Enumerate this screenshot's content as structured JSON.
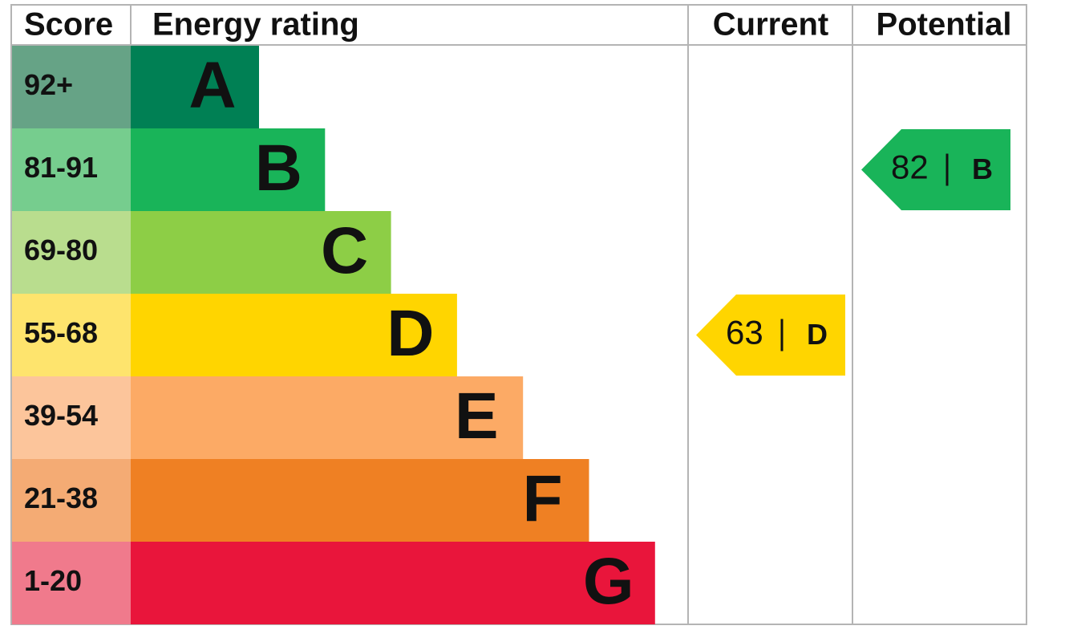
{
  "header": {
    "score": "Score",
    "rating": "Energy rating",
    "current": "Current",
    "potential": "Potential"
  },
  "bands": [
    {
      "score": "92+",
      "letter": "A",
      "color": "#008054",
      "score_color": "#66a386"
    },
    {
      "score": "81-91",
      "letter": "B",
      "color": "#19b459",
      "score_color": "#76cd8e"
    },
    {
      "score": "69-80",
      "letter": "C",
      "color": "#8dce46",
      "score_color": "#b9dd8e"
    },
    {
      "score": "55-68",
      "letter": "D",
      "color": "#ffd500",
      "score_color": "#fee46d"
    },
    {
      "score": "39-54",
      "letter": "E",
      "color": "#fcaa65",
      "score_color": "#fcc59b"
    },
    {
      "score": "21-38",
      "letter": "F",
      "color": "#ef8023",
      "score_color": "#f4ab74"
    },
    {
      "score": "1-20",
      "letter": "G",
      "color": "#e9153b",
      "score_color": "#f07a8c"
    }
  ],
  "current": {
    "score": "63",
    "letter": "D"
  },
  "potential": {
    "score": "82",
    "letter": "B"
  }
}
